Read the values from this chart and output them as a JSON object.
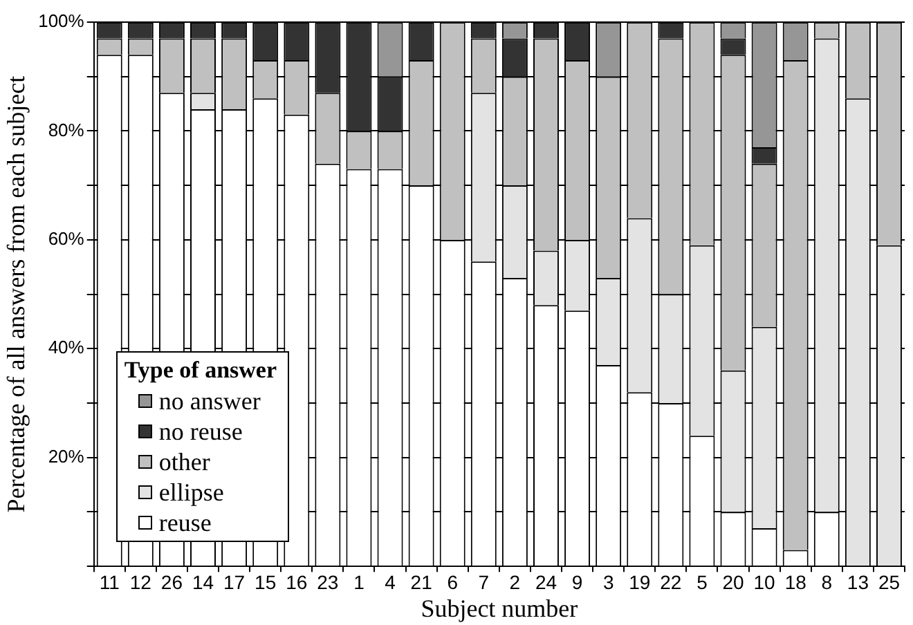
{
  "chart_data": {
    "type": "bar",
    "stacked": true,
    "xlabel": "Subject number",
    "ylabel": "Percentage of all answers from each subject",
    "legend_title": "Type of answer",
    "legend": "bottom left",
    "grid": "y",
    "categories": [
      "11",
      "12",
      "26",
      "14",
      "17",
      "15",
      "16",
      "23",
      "1",
      "4",
      "21",
      "6",
      "7",
      "2",
      "24",
      "9",
      "3",
      "19",
      "22",
      "5",
      "20",
      "10",
      "18",
      "8",
      "13",
      "25"
    ],
    "ylim": [
      0,
      100
    ],
    "yticks": [
      {
        "value": 0,
        "label": null
      },
      {
        "value": 10,
        "label": null
      },
      {
        "value": 20,
        "label": "20%"
      },
      {
        "value": 30,
        "label": null
      },
      {
        "value": 40,
        "label": "40%"
      },
      {
        "value": 50,
        "label": null
      },
      {
        "value": 60,
        "label": "60%"
      },
      {
        "value": 70,
        "label": null
      },
      {
        "value": 80,
        "label": "80%"
      },
      {
        "value": 90,
        "label": null
      },
      {
        "value": 100,
        "label": "100%"
      }
    ],
    "series": [
      {
        "name": "reuse",
        "color": "#ffffff",
        "values": [
          94,
          94,
          87,
          84,
          84,
          86,
          83,
          74,
          73,
          73,
          70,
          60,
          56,
          53,
          48,
          47,
          37,
          32,
          30,
          24,
          10,
          7,
          3,
          10,
          0,
          0
        ]
      },
      {
        "name": "ellipse",
        "color": "#e3e3e3",
        "values": [
          0,
          0,
          0,
          3,
          0,
          0,
          0,
          0,
          0,
          0,
          0,
          0,
          31,
          17,
          10,
          13,
          16,
          32,
          20,
          35,
          26,
          37,
          0,
          87,
          86,
          59
        ]
      },
      {
        "name": "other",
        "color": "#c0c0c0",
        "values": [
          3,
          3,
          10,
          10,
          13,
          7,
          10,
          13,
          7,
          7,
          23,
          40,
          10,
          20,
          39,
          33,
          37,
          36,
          47,
          41,
          58,
          30,
          90,
          3,
          14,
          41
        ]
      },
      {
        "name": "no reuse",
        "color": "#333333",
        "values": [
          3,
          3,
          3,
          3,
          3,
          7,
          7,
          13,
          20,
          10,
          7,
          0,
          3,
          7,
          3,
          7,
          0,
          0,
          3,
          0,
          3,
          3,
          0,
          0,
          0,
          0
        ]
      },
      {
        "name": "no answer",
        "color": "#969696",
        "values": [
          0,
          0,
          0,
          0,
          0,
          0,
          0,
          0,
          0,
          10,
          0,
          0,
          0,
          3,
          0,
          0,
          10,
          0,
          0,
          0,
          3,
          23,
          7,
          0,
          0,
          0
        ]
      }
    ]
  }
}
